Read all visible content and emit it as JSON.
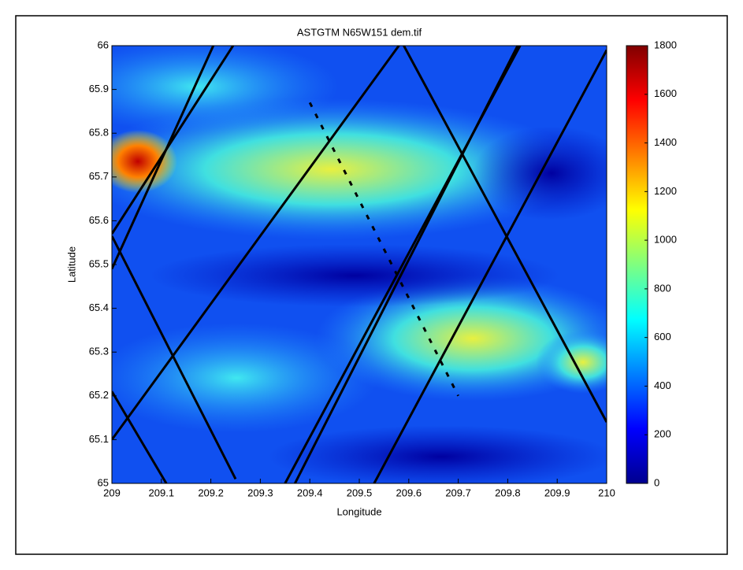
{
  "chart_data": {
    "type": "image",
    "title": "ASTGTM N65W151 dem.tif",
    "x_label": "Longitude",
    "y_label": "Latitude",
    "xlim": [
      209,
      210
    ],
    "ylim": [
      65,
      66
    ],
    "xticks": [
      209,
      209.1,
      209.2,
      209.3,
      209.4,
      209.5,
      209.6,
      209.7,
      209.8,
      209.9,
      210
    ],
    "yticks": [
      65,
      65.1,
      65.2,
      65.3,
      65.4,
      65.5,
      65.6,
      65.7,
      65.8,
      65.9,
      66
    ],
    "colorbar_lim": [
      0,
      1800
    ],
    "colorbar_ticks": [
      0,
      200,
      400,
      600,
      800,
      1000,
      1200,
      1400,
      1600,
      1800
    ],
    "track_color": "#000000",
    "tracks": [
      {
        "x": [
          209.0,
          209.205
        ],
        "y": [
          65.49,
          66.0
        ]
      },
      {
        "x": [
          209.0,
          209.245
        ],
        "y": [
          65.57,
          66.0
        ]
      },
      {
        "x": [
          209.0,
          209.25
        ],
        "y": [
          65.565,
          65.01
        ]
      },
      {
        "x": [
          209.0,
          209.11
        ],
        "y": [
          65.21,
          65.0
        ]
      },
      {
        "x": [
          209.0,
          209.58
        ],
        "y": [
          65.1,
          66.0
        ]
      },
      {
        "x": [
          209.35,
          209.825
        ],
        "y": [
          65.0,
          66.0
        ]
      },
      {
        "x": [
          209.37,
          209.82
        ],
        "y": [
          65.0,
          66.0
        ]
      },
      {
        "x": [
          209.53,
          210.0
        ],
        "y": [
          65.0,
          65.99
        ]
      },
      {
        "x": [
          209.59,
          210.0
        ],
        "y": [
          66.0,
          65.14
        ]
      },
      {
        "x": [
          209.4,
          209.7
        ],
        "y": [
          65.87,
          65.2
        ]
      }
    ]
  }
}
